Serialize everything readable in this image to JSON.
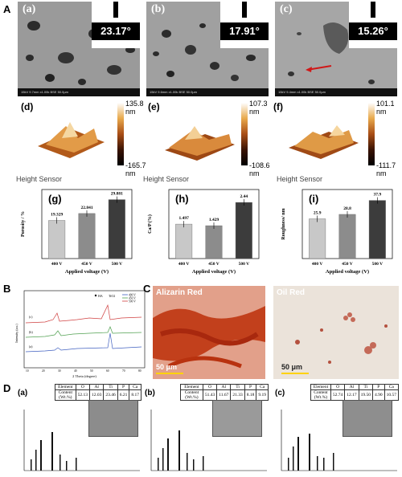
{
  "sectionA": {
    "letter": "A"
  },
  "sem_panels": [
    {
      "label": "(a)",
      "angle": "23.17°",
      "footer": "15kV 9.7mm x1.00k BSE        50.0µm"
    },
    {
      "label": "(b)",
      "angle": "17.91°",
      "footer": "15kV 9.6mm x1.00k BSE        50.0µm"
    },
    {
      "label": "(c)",
      "angle": "15.26°",
      "footer": "15kV 9.4mm x1.00k BSE        50.0µm"
    }
  ],
  "afm_panels": [
    {
      "label": "(d)",
      "max": "135.8 nm",
      "min": "-165.7 nm"
    },
    {
      "label": "(e)",
      "max": "107.3 nm",
      "min": "-108.6 nm"
    },
    {
      "label": "(f)",
      "max": "101.1 nm",
      "min": "-111.7 nm"
    }
  ],
  "height_sensor": "Height Sensor",
  "chart_data": [
    {
      "type": "bar",
      "label": "(g)",
      "categories": [
        "400 V",
        "450 V",
        "500 V"
      ],
      "values": [
        19.329,
        22.841,
        29.881
      ],
      "value_labels": [
        "19.329",
        "22.841",
        "29.881"
      ],
      "ylabel": "Porosity / %",
      "xlabel": "Applied voltage (V)",
      "colors": [
        "#c8c8c8",
        "#8c8c8c",
        "#3c3c3c"
      ]
    },
    {
      "type": "bar",
      "label": "(h)",
      "categories": [
        "400 V",
        "450 V",
        "500 V"
      ],
      "values": [
        1.497,
        1.429,
        2.44
      ],
      "value_labels": [
        "1.497",
        "1.429",
        "2.44"
      ],
      "ylabel": "Ca/P (%)",
      "xlabel": "Applied voltage (V)",
      "colors": [
        "#c8c8c8",
        "#8c8c8c",
        "#3c3c3c"
      ]
    },
    {
      "type": "bar",
      "label": "(i)",
      "categories": [
        "400 V",
        "450 V",
        "500 V"
      ],
      "values": [
        25.9,
        28.8,
        37.9
      ],
      "value_labels": [
        "25.9",
        "28.8",
        "37.9"
      ],
      "ylabel": "Roughness/ nm",
      "xlabel": "Applied voltage (V)",
      "colors": [
        "#c8c8c8",
        "#8c8c8c",
        "#3c3c3c"
      ]
    },
    {
      "type": "line",
      "label": "B",
      "series": [
        {
          "name": "500 V",
          "color": "#d04040"
        },
        {
          "name": "450 V",
          "color": "#50a050"
        },
        {
          "name": "400 V",
          "color": "#4060c0"
        }
      ],
      "legend": [
        "HA",
        "TiO2",
        "400 V",
        "450 V",
        "500 V"
      ],
      "xlabel": "2 Theta (degree)",
      "ylabel": "Intensity (a.u.)",
      "curve_labels": [
        "(c)",
        "(b)",
        "(a)"
      ],
      "xticks": [
        "10",
        "20",
        "30",
        "40",
        "50",
        "60",
        "70",
        "80"
      ]
    }
  ],
  "sectionB": {
    "letter": "B"
  },
  "sectionC": {
    "letter": "C",
    "left_title": "Alizarin Red",
    "right_title": "Oil Red",
    "scale": "50 μm"
  },
  "sectionD": {
    "letter": "D"
  },
  "eds_panels": [
    {
      "label": "(a)",
      "headers": [
        "Element",
        "O",
        "Al",
        "Ti",
        "P",
        "Ca"
      ],
      "row_label": "Content (Wt.%)",
      "values": [
        "52.13",
        "12.03",
        "23.46",
        "6.21",
        "8.17"
      ]
    },
    {
      "label": "(b)",
      "headers": [
        "Element",
        "O",
        "Al",
        "Ti",
        "P",
        "Ca"
      ],
      "row_label": "Content (Wt.%)",
      "values": [
        "51.43",
        "11.67",
        "21.33",
        "8.18",
        "9.19"
      ]
    },
    {
      "label": "(c)",
      "headers": [
        "Element",
        "O",
        "Al",
        "Ti",
        "P",
        "Ca"
      ],
      "row_label": "Content (Wt.%)",
      "values": [
        "52.74",
        "12.17",
        "19.50",
        "4.90",
        "10.57"
      ]
    }
  ]
}
